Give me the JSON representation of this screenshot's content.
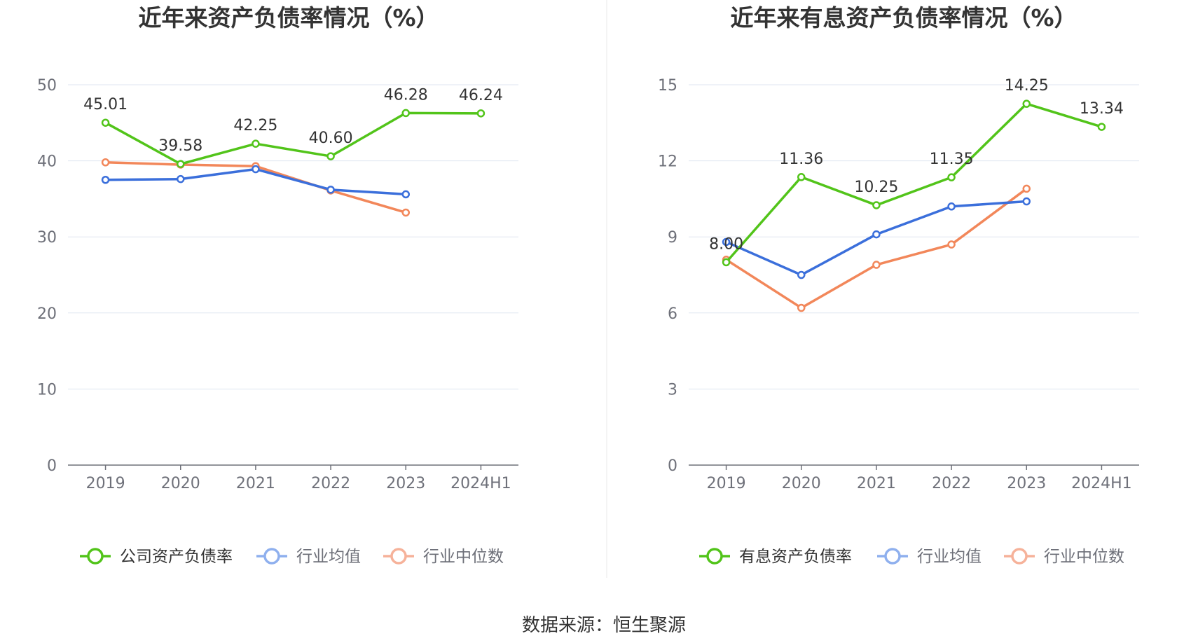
{
  "source_label": "数据来源：恒生聚源",
  "colors": {
    "green": "#52c41a",
    "blue": "#3b6fdb",
    "orange": "#f2875a",
    "blue_legend": "#8fb0ee",
    "orange_legend": "#f6b29a",
    "grid": "#dfe6f0",
    "axis": "#6e7079",
    "divider": "#e9e9e9"
  },
  "chart_data": [
    {
      "type": "line",
      "title": "近年来资产负债率情况（%）",
      "categories": [
        "2019",
        "2020",
        "2021",
        "2022",
        "2023",
        "2024H1"
      ],
      "ylim": [
        0,
        50
      ],
      "yticks": [
        0,
        10,
        20,
        30,
        40,
        50
      ],
      "grid": true,
      "legend_position": "bottom",
      "series": [
        {
          "name": "公司资产负债率",
          "color": "#52c41a",
          "legend_color": "#52c41a",
          "labels": true,
          "values": [
            45.01,
            39.58,
            42.25,
            40.6,
            46.28,
            46.24
          ],
          "value_labels": [
            "45.01",
            "39.58",
            "42.25",
            "40.60",
            "46.28",
            "46.24"
          ]
        },
        {
          "name": "行业均值",
          "color": "#3b6fdb",
          "legend_color": "#8fb0ee",
          "labels": false,
          "values": [
            37.5,
            37.6,
            38.9,
            36.2,
            35.6,
            null
          ]
        },
        {
          "name": "行业中位数",
          "color": "#f2875a",
          "legend_color": "#f6b29a",
          "labels": false,
          "values": [
            39.8,
            39.5,
            39.3,
            36.1,
            33.2,
            null
          ]
        }
      ]
    },
    {
      "type": "line",
      "title": "近年来有息资产负债率情况（%）",
      "categories": [
        "2019",
        "2020",
        "2021",
        "2022",
        "2023",
        "2024H1"
      ],
      "ylim": [
        0,
        15
      ],
      "yticks": [
        0,
        3,
        6,
        9,
        12,
        15
      ],
      "grid": true,
      "legend_position": "bottom",
      "series": [
        {
          "name": "有息资产负债率",
          "color": "#52c41a",
          "legend_color": "#52c41a",
          "labels": true,
          "values": [
            8.0,
            11.36,
            10.25,
            11.35,
            14.25,
            13.34
          ],
          "value_labels": [
            "8.00",
            "11.36",
            "10.25",
            "11.35",
            "14.25",
            "13.34"
          ]
        },
        {
          "name": "行业均值",
          "color": "#3b6fdb",
          "legend_color": "#8fb0ee",
          "labels": false,
          "values": [
            8.8,
            7.5,
            9.1,
            10.2,
            10.4,
            null
          ]
        },
        {
          "name": "行业中位数",
          "color": "#f2875a",
          "legend_color": "#f6b29a",
          "labels": false,
          "values": [
            8.1,
            6.2,
            7.9,
            8.7,
            10.9,
            null
          ]
        }
      ]
    }
  ]
}
